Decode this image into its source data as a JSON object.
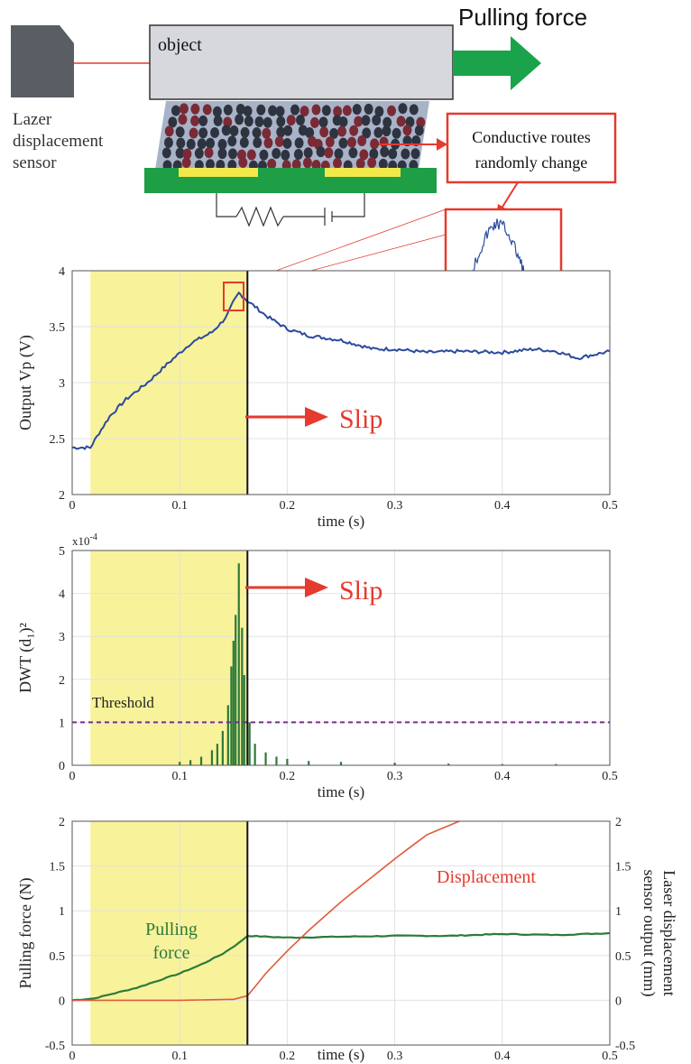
{
  "colors": {
    "shade": "#f8f29a",
    "blue_signal": "#2b4a9c",
    "green_signal": "#2d7a3a",
    "red_annotation": "#e53a2e",
    "threshold_line": "#7a2f8a",
    "object_fill": "#d7d8dd",
    "sensor_fill": "#5a5d63",
    "arrow_green": "#1aa34a",
    "pcb_green": "#1e9e45",
    "electrode_yellow": "#f2e84a"
  },
  "diagram": {
    "object_label": "object",
    "pulling_force_label": "Pulling force",
    "sensor_label_lines": [
      "Lazer",
      "displacement",
      "sensor"
    ],
    "callout_lines": [
      "Conductive routes",
      "randomly change"
    ],
    "icons": [
      "laser-sensor-icon",
      "arrow-right-icon",
      "resistor-symbol",
      "battery-symbol"
    ]
  },
  "chart_data": [
    {
      "type": "line",
      "ylabel": "Output Vp (V)",
      "xlabel": "time (s)",
      "xlim": [
        0,
        0.5
      ],
      "ylim": [
        2,
        4
      ],
      "xticks": [
        "0",
        "0.1",
        "0.2",
        "0.3",
        "0.4",
        "0.5"
      ],
      "yticks": [
        "2",
        "2.5",
        "3",
        "3.5",
        "4"
      ],
      "grid": true,
      "shaded_region": [
        0.017,
        0.163
      ],
      "slip_line_x": 0.163,
      "annotation": "Slip",
      "series": [
        {
          "x": [
            0,
            0.01,
            0.017,
            0.025,
            0.035,
            0.05,
            0.07,
            0.09,
            0.11,
            0.13,
            0.14,
            0.145,
            0.15,
            0.155,
            0.16,
            0.163,
            0.17,
            0.18,
            0.2,
            0.22,
            0.25,
            0.28,
            0.3,
            0.33,
            0.36,
            0.4,
            0.43,
            0.45,
            0.47,
            0.5
          ],
          "y": [
            2.42,
            2.42,
            2.42,
            2.55,
            2.7,
            2.85,
            3.0,
            3.18,
            3.35,
            3.45,
            3.55,
            3.62,
            3.72,
            3.8,
            3.76,
            3.73,
            3.68,
            3.6,
            3.48,
            3.42,
            3.38,
            3.3,
            3.3,
            3.27,
            3.28,
            3.27,
            3.3,
            3.28,
            3.22,
            3.28
          ]
        }
      ]
    },
    {
      "type": "bar",
      "ylabel": "DWT (d₁)²",
      "xlabel": "time (s)",
      "exponent_label": "x10",
      "exponent": "-4",
      "xlim": [
        0,
        0.5
      ],
      "ylim": [
        0,
        5
      ],
      "xticks": [
        "0",
        "0.1",
        "0.2",
        "0.3",
        "0.4",
        "0.5"
      ],
      "yticks": [
        "0",
        "1",
        "2",
        "3",
        "4",
        "5"
      ],
      "grid": true,
      "shaded_region": [
        0.017,
        0.163
      ],
      "slip_line_x": 0.163,
      "threshold": 1,
      "threshold_label": "Threshold",
      "annotation": "Slip",
      "series": [
        {
          "x": [
            0.1,
            0.11,
            0.12,
            0.13,
            0.135,
            0.14,
            0.145,
            0.148,
            0.15,
            0.152,
            0.155,
            0.158,
            0.16,
            0.165,
            0.17,
            0.18,
            0.19,
            0.2,
            0.22,
            0.25,
            0.3,
            0.35,
            0.4,
            0.45
          ],
          "values": [
            0.08,
            0.12,
            0.2,
            0.35,
            0.5,
            0.8,
            1.4,
            2.3,
            2.9,
            3.5,
            4.7,
            3.2,
            2.1,
            1.0,
            0.5,
            0.3,
            0.2,
            0.15,
            0.1,
            0.08,
            0.06,
            0.04,
            0.03,
            0.03
          ]
        }
      ]
    },
    {
      "type": "line",
      "ylabel": "Pulling force (N)",
      "ylabel_right_lines": [
        "Laser displacement",
        "sensor output (mm)"
      ],
      "xlabel": "time (s)",
      "xlim": [
        0,
        0.5
      ],
      "ylim": [
        -0.5,
        2
      ],
      "ylim_right": [
        -0.5,
        2
      ],
      "xticks": [
        "0",
        "0.1",
        "0.2",
        "0.3",
        "0.4",
        "0.5"
      ],
      "yticks": [
        "-0.5",
        "0",
        "0.5",
        "1",
        "1.5",
        "2"
      ],
      "grid": true,
      "shaded_region": [
        0.017,
        0.163
      ],
      "slip_line_x": 0.163,
      "labels": [
        "Pulling",
        "force",
        "Displacement"
      ],
      "series": [
        {
          "x": [
            0,
            0.02,
            0.04,
            0.06,
            0.08,
            0.1,
            0.12,
            0.14,
            0.155,
            0.163,
            0.2,
            0.25,
            0.3,
            0.35,
            0.4,
            0.45,
            0.5
          ],
          "y": [
            0.0,
            0.02,
            0.08,
            0.14,
            0.22,
            0.3,
            0.4,
            0.52,
            0.64,
            0.72,
            0.7,
            0.71,
            0.72,
            0.72,
            0.74,
            0.73,
            0.75
          ]
        },
        {
          "x": [
            0,
            0.1,
            0.15,
            0.163,
            0.17,
            0.18,
            0.2,
            0.22,
            0.25,
            0.3,
            0.33,
            0.36
          ],
          "y": [
            0.0,
            0.0,
            0.01,
            0.05,
            0.15,
            0.3,
            0.55,
            0.78,
            1.1,
            1.58,
            1.85,
            2.0
          ]
        }
      ]
    }
  ]
}
